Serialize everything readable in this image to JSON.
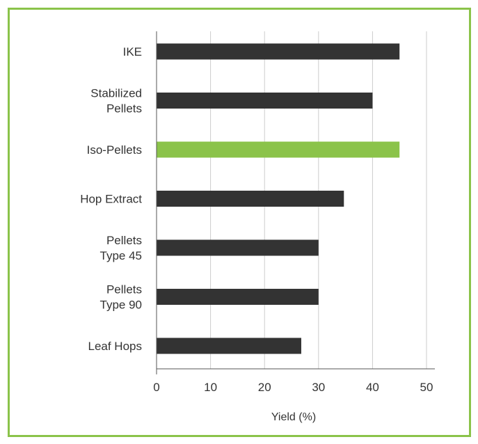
{
  "chart_data": {
    "type": "bar",
    "orientation": "horizontal",
    "categories": [
      [
        "IKE"
      ],
      [
        "Stabilized",
        "Pellets"
      ],
      [
        "Iso-Pellets"
      ],
      [
        "Hop Extract"
      ],
      [
        "Pellets",
        "Type 45"
      ],
      [
        "Pellets",
        "Type 90"
      ],
      [
        "Leaf Hops"
      ]
    ],
    "values": [
      45,
      40,
      45,
      34.7,
      30,
      30,
      26.8
    ],
    "highlight_index": 2,
    "xlabel": "Yield (%)",
    "ylabel": "",
    "xlim": [
      0,
      50
    ],
    "xticks": [
      "0",
      "10",
      "20",
      "30",
      "40",
      "50"
    ],
    "grid": "vertical",
    "colors": {
      "bar": "#333333",
      "highlight": "#8bc34a",
      "grid": "#cccccc",
      "frame": "#8bc34a"
    }
  }
}
